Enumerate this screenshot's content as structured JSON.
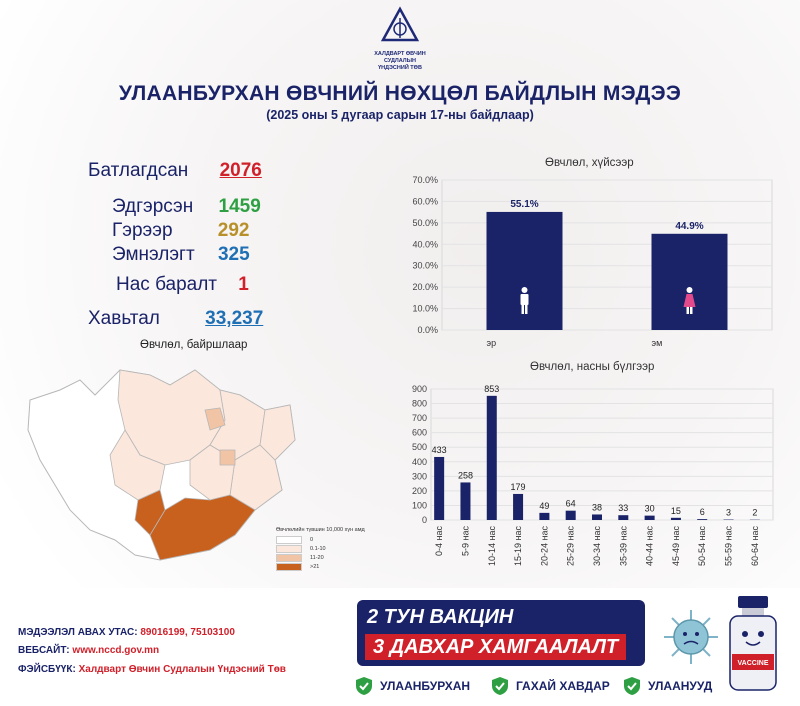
{
  "header": {
    "org_line1": "ХАЛДВАРТ ӨВЧИН СУДЛАЛЫН",
    "org_line2": "ҮНДЭСНИЙ ТӨВ",
    "title": "УЛААНБУРХАН ӨВЧНИЙ НӨХЦӨЛ БАЙДЛЫН МЭДЭЭ",
    "subtitle": "(2025 оны 5 дугаар сарын 17-ны байдлаар)"
  },
  "stats": {
    "confirmed_label": "Батлагдсан",
    "confirmed_value": "2076",
    "recovered_label": "Эдгэрсэн",
    "recovered_value": "1459",
    "home_label": "Гэрээр",
    "home_value": "292",
    "hospital_label": "Эмнэлэгт",
    "hospital_value": "325",
    "deaths_label": "Нас баралт",
    "deaths_value": "1",
    "contacts_label": "Хавьтал",
    "contacts_value": "33,237"
  },
  "map": {
    "title": "Өвчлөл, байршлаар",
    "legend_title": "Өвчлөлийн түвшин 10,000 хүн амд",
    "legend": [
      {
        "label": "0",
        "color": "#ffffff"
      },
      {
        "label": "0.1-10",
        "color": "#fbe7dc"
      },
      {
        "label": "11-20",
        "color": "#f2c4a6"
      },
      {
        "label": ">21",
        "color": "#c8601e"
      }
    ]
  },
  "chart_data": [
    {
      "type": "bar",
      "title": "Өвчлөл, хүйсээр",
      "categories": [
        "эр",
        "эм"
      ],
      "values": [
        55.1,
        44.9
      ],
      "data_labels": [
        "55.1%",
        "44.9%"
      ],
      "ylim": [
        0,
        70
      ],
      "yticks": [
        "0.0%",
        "10.0%",
        "20.0%",
        "30.0%",
        "40.0%",
        "50.0%",
        "60.0%",
        "70.0%"
      ],
      "grid": true,
      "colors": [
        "#1a2368"
      ]
    },
    {
      "type": "bar",
      "title": "Өвчлөл, насны бүлгээр",
      "categories": [
        "0-4 нас",
        "5-9 нас",
        "10-14 нас",
        "15-19 нас",
        "20-24 нас",
        "25-29 нас",
        "30-34 нас",
        "35-39 нас",
        "40-44 нас",
        "45-49 нас",
        "50-54 нас",
        "55-59 нас",
        "60-64 нас"
      ],
      "values": [
        433,
        258,
        853,
        179,
        49,
        64,
        38,
        33,
        30,
        15,
        6,
        3,
        2
      ],
      "ylim": [
        0,
        900
      ],
      "yticks": [
        "0",
        "100",
        "200",
        "300",
        "400",
        "500",
        "600",
        "700",
        "800",
        "900"
      ],
      "grid": true,
      "colors": [
        "#1a2368"
      ]
    }
  ],
  "footer": {
    "phone_label": "МЭДЭЭЛЭЛ АВАХ УТАС:",
    "phone_value": "89016199, 75103100",
    "web_label": "ВЕБСАЙТ:",
    "web_value": "www.nccd.gov.mn",
    "fb_label": "ФЭЙСБҮҮК:",
    "fb_value": "Халдварт Өвчин Судлалын Үндэсний Төв",
    "vaccine_line1": "2 ТУН ВАКЦИН",
    "vaccine_line2": "3 ДАВХАР ХАМГААЛАЛТ",
    "diseases": [
      "УЛААНБУРХАН",
      "ГАХАЙ ХАВДАР",
      "УЛААНУУД"
    ],
    "vial_label": "VACCINE"
  },
  "colors": {
    "navy": "#1a2368",
    "red": "#d0202a",
    "green": "#2ea043",
    "gold": "#b8902a",
    "blue": "#1f6fb5"
  }
}
